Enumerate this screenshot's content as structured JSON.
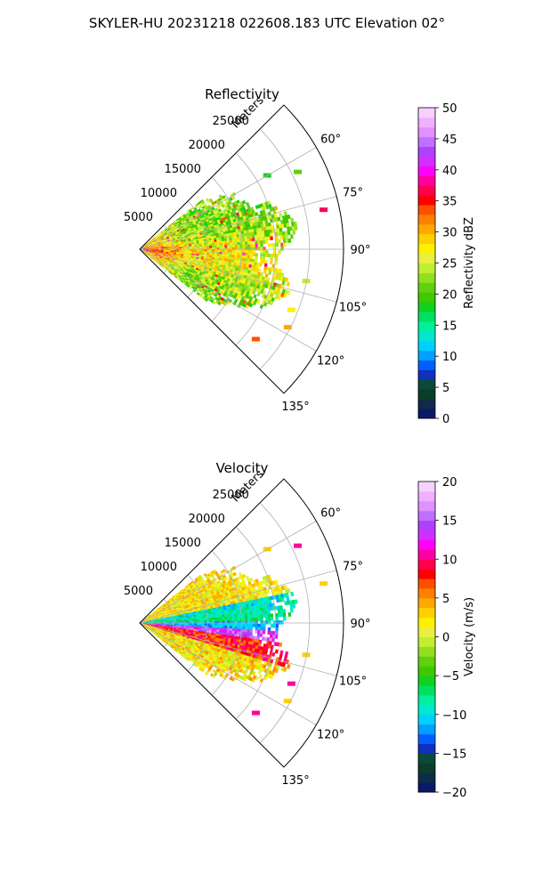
{
  "suptitle": "SKYLER-HU  20231218  022608.183 UTC Elevation 02°",
  "chart_data": [
    {
      "type": "heatmap",
      "projection": "polar-sector",
      "title": "Reflectivity",
      "radial_axis_label": "Meters",
      "radial_ticks": [
        5000,
        10000,
        15000,
        20000,
        25000
      ],
      "radial_tick_labels": [
        "5000",
        "10000",
        "15000",
        "20000",
        "25000"
      ],
      "rlim": [
        0,
        30000
      ],
      "azimuth_range_deg": [
        45,
        135
      ],
      "azimuth_ticks": [
        60,
        75,
        90,
        105,
        120,
        135
      ],
      "azimuth_tick_labels": [
        "60°",
        "75°",
        "90°",
        "105°",
        "120°",
        "135°"
      ],
      "grid": true,
      "colorbar": {
        "label": "Reflectivity dBZ",
        "range": [
          0,
          50
        ],
        "ticks": [
          0,
          5,
          10,
          15,
          20,
          25,
          30,
          35,
          40,
          45,
          50
        ],
        "tick_labels": [
          "0",
          "5",
          "10",
          "15",
          "20",
          "25",
          "30",
          "35",
          "40",
          "45",
          "50"
        ]
      },
      "colors": [
        "#0a1a66",
        "#102a4a",
        "#0a3d2a",
        "#0a4a3a",
        "#1030c0",
        "#0060ff",
        "#00a0ff",
        "#00d0ff",
        "#00e8d0",
        "#00f0a0",
        "#00e060",
        "#10d020",
        "#40c800",
        "#60d010",
        "#90e020",
        "#c0ee30",
        "#e8f040",
        "#fff000",
        "#ffd000",
        "#ffa800",
        "#ff8000",
        "#ff5000",
        "#ff0000",
        "#ff0050",
        "#ff00a0",
        "#ff00ff",
        "#d030ff",
        "#b040ff",
        "#c070ff",
        "#e090ff",
        "#f0b0ff",
        "#f8d0ff"
      ]
    },
    {
      "type": "heatmap",
      "projection": "polar-sector",
      "title": "Velocity",
      "radial_axis_label": "Meters",
      "radial_ticks": [
        5000,
        10000,
        15000,
        20000,
        25000
      ],
      "radial_tick_labels": [
        "5000",
        "10000",
        "15000",
        "20000",
        "25000"
      ],
      "rlim": [
        0,
        30000
      ],
      "azimuth_range_deg": [
        45,
        135
      ],
      "azimuth_ticks": [
        60,
        75,
        90,
        105,
        120,
        135
      ],
      "azimuth_tick_labels": [
        "60°",
        "75°",
        "90°",
        "105°",
        "120°",
        "135°"
      ],
      "grid": true,
      "colorbar": {
        "label": "Velocity (m/s)",
        "range": [
          -20,
          20
        ],
        "ticks": [
          -20,
          -15,
          -10,
          -5,
          0,
          5,
          10,
          15,
          20
        ],
        "tick_labels": [
          "−20",
          "−15",
          "−10",
          "−5",
          "0",
          "5",
          "10",
          "15",
          "20"
        ]
      },
      "colors": [
        "#0a1a66",
        "#102a4a",
        "#0a3d2a",
        "#0a4a3a",
        "#1030c0",
        "#0060ff",
        "#00a0ff",
        "#00d0ff",
        "#00e8d0",
        "#00f0a0",
        "#00e060",
        "#10d020",
        "#40c800",
        "#60d010",
        "#90e020",
        "#c0ee30",
        "#e8f040",
        "#fff000",
        "#ffd000",
        "#ffa800",
        "#ff8000",
        "#ff5000",
        "#ff0000",
        "#ff0050",
        "#ff00a0",
        "#ff00ff",
        "#d030ff",
        "#b040ff",
        "#c070ff",
        "#e090ff",
        "#f0b0ff",
        "#f8d0ff"
      ]
    }
  ]
}
